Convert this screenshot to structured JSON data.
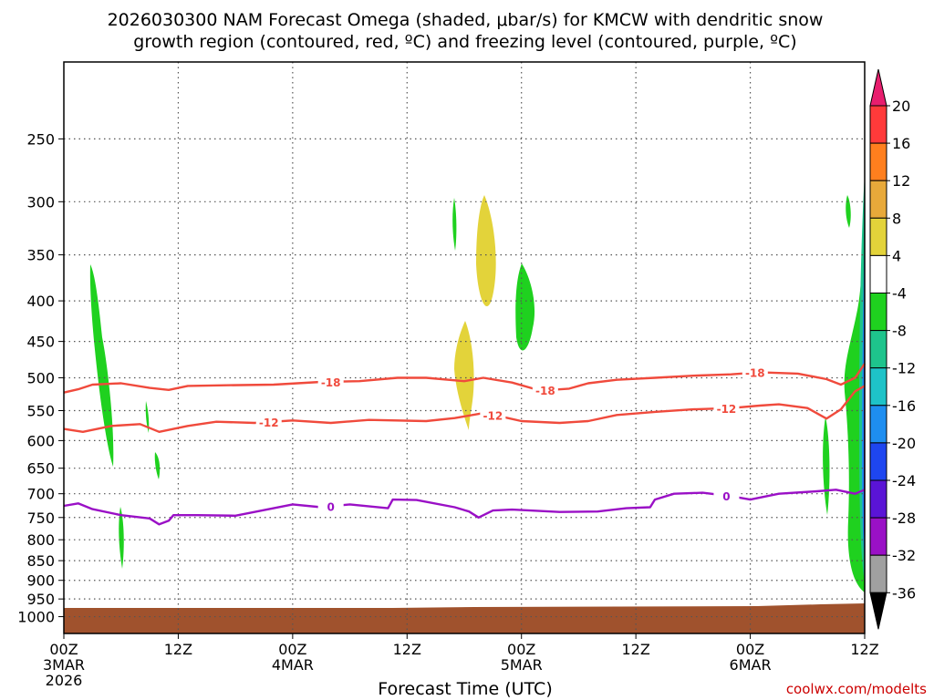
{
  "chart_data": {
    "type": "heatmap",
    "title_line1": "2026030300 NAM Forecast Omega (shaded, μbar/s) for KMCW with dendritic snow",
    "title_line2": "growth region (contoured, red, ºC) and freezing level (contoured, purple, ºC)",
    "xlabel": "Forecast Time (UTC)",
    "credit": "coolwx.com/modelts",
    "y_axis": {
      "scale": "pressure (log)",
      "reversed": true,
      "ylim": [
        1050,
        200
      ],
      "ticks": [
        "250",
        "300",
        "350",
        "400",
        "450",
        "500",
        "550",
        "600",
        "650",
        "700",
        "750",
        "800",
        "850",
        "900",
        "950",
        "1000"
      ]
    },
    "x_axis": {
      "range_hours": [
        0,
        84
      ],
      "ticks": [
        {
          "hour": 0,
          "line1": "00Z",
          "line2": "3MAR",
          "line3": "2026"
        },
        {
          "hour": 12,
          "line1": "12Z",
          "line2": "",
          "line3": ""
        },
        {
          "hour": 24,
          "line1": "00Z",
          "line2": "4MAR",
          "line3": ""
        },
        {
          "hour": 36,
          "line1": "12Z",
          "line2": "",
          "line3": ""
        },
        {
          "hour": 48,
          "line1": "00Z",
          "line2": "5MAR",
          "line3": ""
        },
        {
          "hour": 60,
          "line1": "12Z",
          "line2": "",
          "line3": ""
        },
        {
          "hour": 72,
          "line1": "00Z",
          "line2": "6MAR",
          "line3": ""
        },
        {
          "hour": 84,
          "line1": "12Z",
          "line2": "",
          "line3": ""
        }
      ],
      "grid": true
    },
    "colorbar": {
      "labels": [
        "20",
        "16",
        "12",
        "8",
        "4",
        "-4",
        "-8",
        "-12",
        "-16",
        "-20",
        "-24",
        "-28",
        "-32",
        "-36"
      ],
      "colors": [
        "#e81e6e",
        "#ff3a3a",
        "#ff7f1e",
        "#e8a93a",
        "#e3d33a",
        "#ffffff",
        "#1fd11f",
        "#1ec48c",
        "#1ec3c8",
        "#1e8ef0",
        "#1e46f0",
        "#5a14d6",
        "#9a10c6",
        "#a0a0a0",
        "#000000"
      ]
    },
    "series": [
      {
        "name": "-18",
        "color": "#f04a3c",
        "label_positions_hours": [
          28,
          50.5,
          72.5
        ],
        "points": [
          [
            0,
            522
          ],
          [
            1.5,
            517
          ],
          [
            3,
            510
          ],
          [
            6,
            508
          ],
          [
            9,
            515
          ],
          [
            11,
            518
          ],
          [
            13,
            512
          ],
          [
            17,
            511
          ],
          [
            22,
            510
          ],
          [
            27,
            506
          ],
          [
            31,
            505
          ],
          [
            35,
            500
          ],
          [
            38,
            500
          ],
          [
            42,
            505
          ],
          [
            44,
            500
          ],
          [
            47,
            507
          ],
          [
            50,
            519
          ],
          [
            53,
            516
          ],
          [
            55,
            508
          ],
          [
            58,
            503
          ],
          [
            62,
            500
          ],
          [
            66,
            497
          ],
          [
            70,
            495
          ],
          [
            73,
            492
          ],
          [
            77,
            494
          ],
          [
            80,
            502
          ],
          [
            81.5,
            510
          ],
          [
            83,
            500
          ],
          [
            84,
            480
          ]
        ]
      },
      {
        "name": "-12",
        "color": "#f04a3c",
        "label_positions_hours": [
          21.5,
          45,
          69.5
        ],
        "points": [
          [
            0,
            580
          ],
          [
            2,
            585
          ],
          [
            5,
            575
          ],
          [
            8,
            572
          ],
          [
            10,
            585
          ],
          [
            13,
            575
          ],
          [
            16,
            568
          ],
          [
            20,
            570
          ],
          [
            24,
            566
          ],
          [
            28,
            570
          ],
          [
            32,
            565
          ],
          [
            38,
            567
          ],
          [
            41,
            562
          ],
          [
            44,
            554
          ],
          [
            46,
            560
          ],
          [
            48,
            567
          ],
          [
            52,
            570
          ],
          [
            55,
            567
          ],
          [
            58,
            557
          ],
          [
            62,
            552
          ],
          [
            66,
            548
          ],
          [
            70,
            546
          ],
          [
            73,
            542
          ],
          [
            75,
            540
          ],
          [
            78,
            546
          ],
          [
            80,
            563
          ],
          [
            81.5,
            548
          ],
          [
            83,
            520
          ],
          [
            84,
            512
          ]
        ]
      },
      {
        "name": "0",
        "color": "#9a10c6",
        "label_positions_hours": [
          28,
          69.5
        ],
        "points": [
          [
            0,
            725
          ],
          [
            1.5,
            720
          ],
          [
            3,
            732
          ],
          [
            6,
            745
          ],
          [
            9,
            752
          ],
          [
            10,
            765
          ],
          [
            11,
            757
          ],
          [
            11.5,
            745
          ],
          [
            14,
            745
          ],
          [
            18,
            746
          ],
          [
            22,
            730
          ],
          [
            24,
            722
          ],
          [
            27,
            728
          ],
          [
            30,
            722
          ],
          [
            34,
            730
          ],
          [
            34.5,
            712
          ],
          [
            37,
            713
          ],
          [
            41,
            728
          ],
          [
            42.5,
            737
          ],
          [
            43.5,
            750
          ],
          [
            45,
            735
          ],
          [
            47,
            733
          ],
          [
            52,
            738
          ],
          [
            56,
            737
          ],
          [
            59,
            730
          ],
          [
            61.5,
            728
          ],
          [
            62,
            712
          ],
          [
            64,
            700
          ],
          [
            67,
            698
          ],
          [
            70,
            705
          ],
          [
            72,
            712
          ],
          [
            75,
            700
          ],
          [
            79,
            695
          ],
          [
            81,
            692
          ],
          [
            83,
            700
          ],
          [
            84,
            692
          ]
        ]
      }
    ]
  }
}
